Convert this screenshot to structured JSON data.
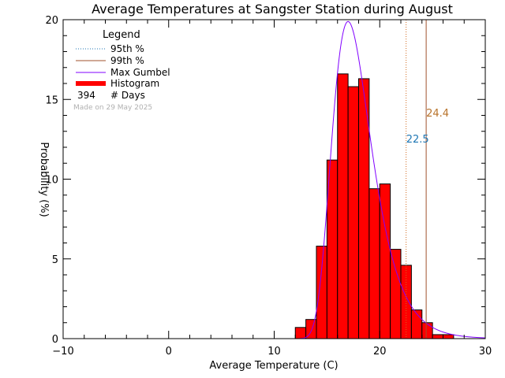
{
  "chart_data": {
    "type": "bar",
    "title": "Average Temperatures at Sangster Station during August",
    "xlabel": "Average Temperature (C)",
    "ylabel": "Probability (%)",
    "xlim": [
      -10,
      30
    ],
    "ylim": [
      0,
      20
    ],
    "x_ticks": [
      -10,
      0,
      10,
      20,
      30
    ],
    "y_ticks": [
      0,
      5,
      10,
      15,
      20
    ],
    "bin_width": 1,
    "bins": [
      {
        "x0": 12,
        "x1": 13,
        "y": 0.7
      },
      {
        "x0": 13,
        "x1": 14,
        "y": 1.2
      },
      {
        "x0": 14,
        "x1": 15,
        "y": 5.8
      },
      {
        "x0": 15,
        "x1": 16,
        "y": 11.2
      },
      {
        "x0": 16,
        "x1": 17,
        "y": 16.6
      },
      {
        "x0": 17,
        "x1": 18,
        "y": 15.8
      },
      {
        "x0": 18,
        "x1": 19,
        "y": 16.3
      },
      {
        "x0": 19,
        "x1": 20,
        "y": 9.4
      },
      {
        "x0": 20,
        "x1": 21,
        "y": 9.7
      },
      {
        "x0": 21,
        "x1": 22,
        "y": 5.6
      },
      {
        "x0": 22,
        "x1": 23,
        "y": 4.6
      },
      {
        "x0": 23,
        "x1": 24,
        "y": 1.8
      },
      {
        "x0": 24,
        "x1": 25,
        "y": 1.0
      },
      {
        "x0": 25,
        "x1": 26,
        "y": 0.25
      },
      {
        "x0": 26,
        "x1": 27,
        "y": 0.25
      }
    ],
    "gumbel": {
      "mode": 17.0,
      "scale": 1.85
    },
    "percentile_95": {
      "value": 22.5,
      "label": "22.5",
      "color": "#d2691e"
    },
    "percentile_99": {
      "value": 24.4,
      "label": "24.4",
      "color": "#a0522d"
    },
    "legend": {
      "title": "Legend",
      "placement": "top-left",
      "entries": [
        {
          "label": "95th %",
          "color": "#1f77b4",
          "style": "dotted"
        },
        {
          "label": "99th %",
          "color": "#a0522d",
          "style": "solid"
        },
        {
          "label": "Max Gumbel",
          "color": "#8000ff",
          "style": "solid"
        },
        {
          "label": "Histogram",
          "color": "#ff0000",
          "style": "thick"
        }
      ],
      "days_count": "394",
      "days_label": "# Days",
      "note": "Made on 29 May 2025"
    },
    "colors": {
      "histogram": "#ff0000",
      "gumbel": "#8000ff",
      "p95_line": "#d2691e",
      "p95_label": "#1f77b4",
      "p99_line": "#a0522d",
      "p99_label": "#b8732a"
    }
  }
}
